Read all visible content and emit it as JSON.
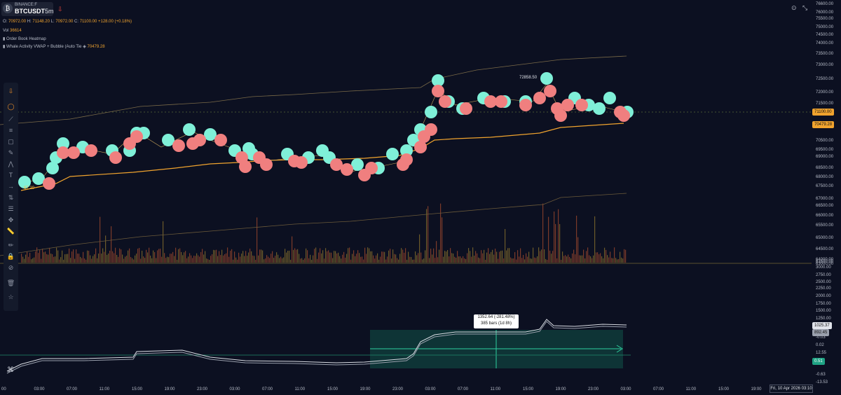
{
  "header": {
    "exchange": "BINANCE:F",
    "symbol": "BTCUSDT",
    "interval": "5m",
    "ohlc": {
      "o_label": "O:",
      "o": "70972.00",
      "h_label": "H:",
      "h": "71148.20",
      "l_label": "L:",
      "l": "70972.00",
      "c_label": "C:",
      "c": "71100.00",
      "change": "+128.00",
      "change_pct": "(+0.18%)"
    },
    "volume_label": "Vol",
    "volume": "36614",
    "indicator_1": "Order Book Heatmap",
    "indicator_2": "Whale Activity VWAP + Bubble (Auto Tie",
    "indicator_2_value": "70479.28"
  },
  "price_axis": [
    "76600.00",
    "76000.00",
    "75500.00",
    "75000.00",
    "74500.00",
    "74000.00",
    "73500.00",
    "73000.00",
    "72500.00",
    "72000.00",
    "71500.00",
    "70500.00",
    "69500.00",
    "69000.00",
    "68500.00",
    "68000.00",
    "67500.00",
    "67000.00",
    "66500.00",
    "66000.00",
    "65500.00",
    "65000.00",
    "64500.00",
    "64000.00",
    "63500.00",
    "63000.00"
  ],
  "price_badges": {
    "last": "71100.00",
    "vwap": "70479.28"
  },
  "indicator_axis": [
    "3000.00",
    "2750.00",
    "2500.00",
    "2250.00",
    "2000.00",
    "1750.00",
    "1500.00",
    "1250.00",
    "-0.03",
    "0.02",
    "12.55",
    "0.00",
    "-0.63",
    "-13.53"
  ],
  "indicator_badges": {
    "a": "1025.37",
    "b": "892.45",
    "c": "0.51"
  },
  "time_axis": [
    "00",
    "03:00",
    "07:00",
    "11:00",
    "15:00",
    "19:00",
    "23:00",
    "03:00",
    "07:00",
    "11:00",
    "15:00",
    "19:00",
    "23:00",
    "03:00",
    "07:00",
    "11:00",
    "15:00",
    "19:00",
    "23:00",
    "03:00",
    "07:00",
    "11:00",
    "15:00",
    "19:00",
    "23:00"
  ],
  "date_tooltip": "Fri, 10 Apr 2026  03:10",
  "measure": {
    "line1": "1352.64 (-281.48%)",
    "line2": "385 bars (1d 8h)"
  },
  "high_label": "72858.50",
  "left_price_label": "67.20",
  "toolbar_icons": [
    "pin-icon",
    "crosshair-icon",
    "trend-line-icon",
    "fib-icon",
    "rectangle-icon",
    "brush-icon",
    "pattern-icon",
    "text-icon",
    "arrow-icon",
    "position-icon",
    "projection-icon",
    "move-icon",
    "ruler-icon",
    "pencil-icon",
    "lock-icon",
    "eye-off-icon",
    "trash-icon",
    "layers-icon",
    "star-icon"
  ],
  "colors": {
    "bg": "#0c1021",
    "bubble_buy": "#7ff0d8",
    "bubble_sell": "#f07f7f",
    "vwap": "#f0a32e",
    "band": "#8a7a52",
    "accent_teal": "#1fa384"
  }
}
